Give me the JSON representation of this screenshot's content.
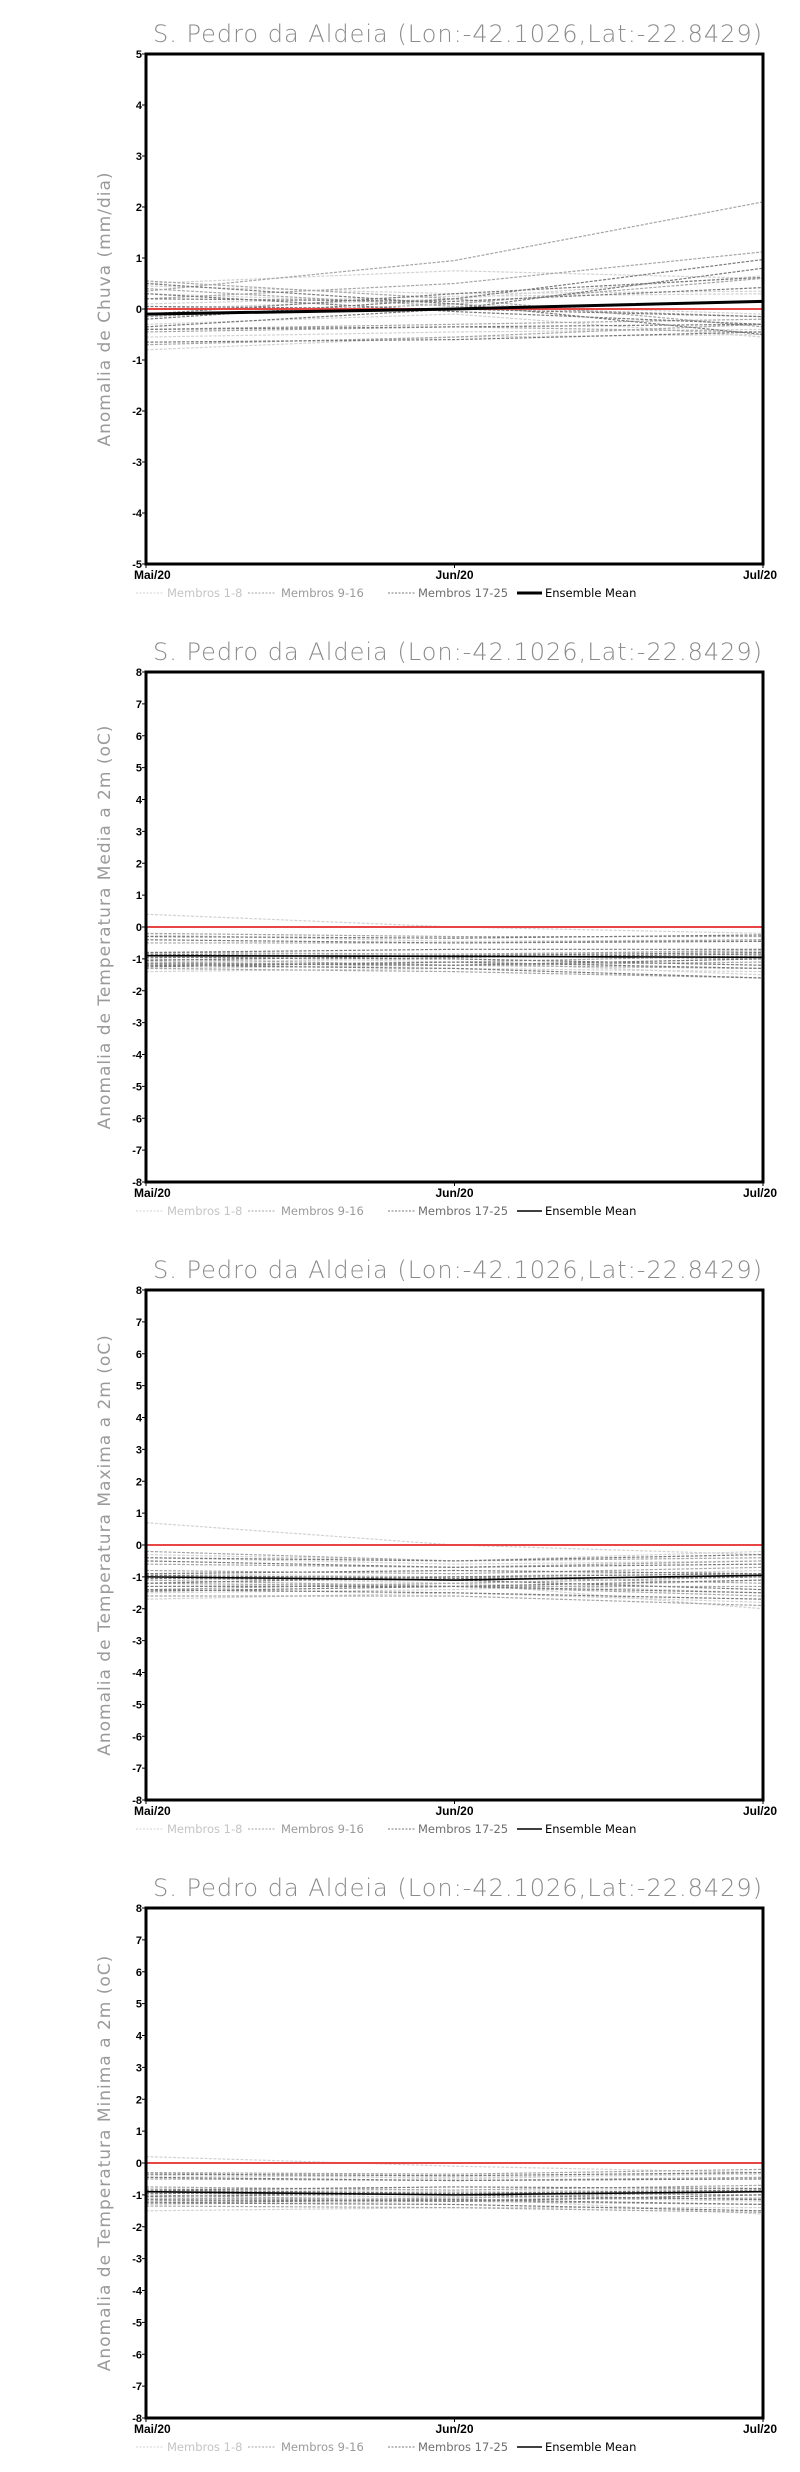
{
  "colors": {
    "members_1_8": "#d2d2d2",
    "members_9_16": "#a6a6a6",
    "members_17_25": "#7a7a7a",
    "mean": "#000000",
    "zero_line": "#e84545",
    "legend_1_8": "#c4c4c4",
    "legend_9_16": "#9a9a9a",
    "legend_17_25": "#6e6e6e"
  },
  "legend": {
    "m1": "Membros 1-8",
    "m2": "Membros 9-16",
    "m3": "Membros 17-25",
    "mean": "Ensemble Mean"
  },
  "chart_data": [
    {
      "type": "line",
      "title": "S. Pedro da Aldeia (Lon:-42.1026,Lat:-22.8429)",
      "ylabel": "Anomalia de Chuva (mm/dia)",
      "x": [
        "Mai/20",
        "Jun/20",
        "Jul/20"
      ],
      "ylim": [
        -5,
        5
      ],
      "yticks": [
        "-5",
        "-4",
        "-3",
        "-2",
        "-1",
        "0",
        "1",
        "2",
        "3",
        "4",
        "5"
      ],
      "mean_bold": true,
      "members": [
        [
          0.5,
          0.75,
          0.6
        ],
        [
          0.45,
          0.3,
          0.35
        ],
        [
          -0.8,
          -0.55,
          -0.5
        ],
        [
          0.1,
          0.25,
          0.3
        ],
        [
          -0.55,
          -0.45,
          -0.4
        ],
        [
          0.3,
          0.1,
          -0.1
        ],
        [
          -0.3,
          -0.1,
          -0.55
        ],
        [
          0.0,
          0.2,
          0.65
        ],
        [
          0.35,
          0.95,
          2.1
        ],
        [
          0.55,
          0.2,
          -0.35
        ],
        [
          -0.7,
          -0.55,
          -0.3
        ],
        [
          0.2,
          0.5,
          1.12
        ],
        [
          -0.4,
          -0.3,
          -0.2
        ],
        [
          0.4,
          0.05,
          -0.15
        ],
        [
          -0.15,
          0.1,
          0.6
        ],
        [
          -0.45,
          -0.35,
          -0.45
        ],
        [
          0.5,
          0.1,
          -0.5
        ],
        [
          -0.35,
          0.0,
          0.8
        ],
        [
          0.2,
          0.15,
          0.42
        ],
        [
          -0.65,
          -0.6,
          -0.45
        ],
        [
          0.3,
          -0.05,
          -0.3
        ],
        [
          -0.2,
          0.2,
          0.97
        ],
        [
          -0.4,
          -0.35,
          -0.3
        ],
        [
          0.05,
          0.0,
          -0.15
        ],
        [
          -0.1,
          0.3,
          0.62
        ]
      ],
      "mean": [
        -0.1,
        0.0,
        0.15
      ]
    },
    {
      "type": "line",
      "title": "S. Pedro da Aldeia (Lon:-42.1026,Lat:-22.8429)",
      "ylabel": "Anomalia de Temperatura Media a 2m (oC)",
      "x": [
        "Mai/20",
        "Jun/20",
        "Jul/20"
      ],
      "ylim": [
        -8,
        8
      ],
      "yticks": [
        "-8",
        "-7",
        "-6",
        "-5",
        "-4",
        "-3",
        "-2",
        "-1",
        "0",
        "1",
        "2",
        "3",
        "4",
        "5",
        "6",
        "7",
        "8"
      ],
      "mean_bold": false,
      "members": [
        [
          0.4,
          0.0,
          -0.2
        ],
        [
          -0.3,
          -0.35,
          -0.25
        ],
        [
          -1.4,
          -1.3,
          -1.4
        ],
        [
          -0.8,
          -0.9,
          -0.7
        ],
        [
          -1.1,
          -1.0,
          -1.2
        ],
        [
          -0.25,
          -0.45,
          -0.4
        ],
        [
          -1.3,
          -1.2,
          -1.0
        ],
        [
          -0.9,
          -1.1,
          -1.5
        ],
        [
          -0.2,
          -0.3,
          -0.3
        ],
        [
          -1.2,
          -1.1,
          -0.9
        ],
        [
          -0.8,
          -0.85,
          -0.75
        ],
        [
          -1.0,
          -1.2,
          -1.3
        ],
        [
          -0.5,
          -0.5,
          -0.4
        ],
        [
          -1.3,
          -1.4,
          -1.6
        ],
        [
          -0.9,
          -0.9,
          -1.0
        ],
        [
          -1.1,
          -1.2,
          -1.1
        ],
        [
          -0.3,
          -0.35,
          -0.25
        ],
        [
          -0.8,
          -0.7,
          -0.7
        ],
        [
          -1.2,
          -1.3,
          -1.6
        ],
        [
          -0.95,
          -1.0,
          -1.2
        ],
        [
          -1.05,
          -0.9,
          -0.8
        ],
        [
          -0.4,
          -0.5,
          -0.45
        ],
        [
          -1.25,
          -1.1,
          -1.3
        ],
        [
          -0.85,
          -0.95,
          -0.85
        ],
        [
          -1.15,
          -1.2,
          -1.0
        ]
      ],
      "mean": [
        -0.9,
        -0.92,
        -0.95
      ]
    },
    {
      "type": "line",
      "title": "S. Pedro da Aldeia (Lon:-42.1026,Lat:-22.8429)",
      "ylabel": "Anomalia de Temperatura Maxima a 2m (oC)",
      "x": [
        "Mai/20",
        "Jun/20",
        "Jul/20"
      ],
      "ylim": [
        -8,
        8
      ],
      "yticks": [
        "-8",
        "-7",
        "-6",
        "-5",
        "-4",
        "-3",
        "-2",
        "-1",
        "0",
        "1",
        "2",
        "3",
        "4",
        "5",
        "6",
        "7",
        "8"
      ],
      "mean_bold": false,
      "members": [
        [
          0.7,
          0.0,
          -0.3
        ],
        [
          -0.4,
          -0.6,
          -0.5
        ],
        [
          -1.7,
          -1.5,
          -1.8
        ],
        [
          -0.9,
          -1.0,
          -0.8
        ],
        [
          -1.3,
          -1.2,
          -1.5
        ],
        [
          -0.3,
          -0.5,
          -0.2
        ],
        [
          -1.5,
          -1.4,
          -1.1
        ],
        [
          -1.0,
          -1.2,
          -2.0
        ],
        [
          -0.2,
          -0.5,
          -0.4
        ],
        [
          -1.4,
          -1.2,
          -1.0
        ],
        [
          -0.8,
          -0.9,
          -0.7
        ],
        [
          -1.1,
          -1.3,
          -1.6
        ],
        [
          -0.6,
          -0.7,
          -0.5
        ],
        [
          -1.6,
          -1.6,
          -1.9
        ],
        [
          -1.0,
          -1.0,
          -1.2
        ],
        [
          -1.2,
          -1.3,
          -1.3
        ],
        [
          -0.4,
          -0.5,
          -0.3
        ],
        [
          -0.9,
          -0.8,
          -0.9
        ],
        [
          -1.4,
          -1.5,
          -1.7
        ],
        [
          -1.05,
          -1.1,
          -1.4
        ],
        [
          -1.2,
          -1.0,
          -0.9
        ],
        [
          -0.5,
          -0.7,
          -0.6
        ],
        [
          -1.45,
          -1.3,
          -1.5
        ],
        [
          -0.95,
          -1.05,
          -1.0
        ],
        [
          -1.3,
          -1.3,
          -1.1
        ]
      ],
      "mean": [
        -1.0,
        -1.1,
        -0.95
      ]
    },
    {
      "type": "line",
      "title": "S. Pedro da Aldeia (Lon:-42.1026,Lat:-22.8429)",
      "ylabel": "Anomalia de Temperatura Minima a 2m (oC)",
      "x": [
        "Mai/20",
        "Jun/20",
        "Jul/20"
      ],
      "ylim": [
        -8,
        8
      ],
      "yticks": [
        "-8",
        "-7",
        "-6",
        "-5",
        "-4",
        "-3",
        "-2",
        "-1",
        "0",
        "1",
        "2",
        "3",
        "4",
        "5",
        "6",
        "7",
        "8"
      ],
      "mean_bold": false,
      "members": [
        [
          0.2,
          -0.1,
          -0.3
        ],
        [
          -0.4,
          -0.45,
          -0.35
        ],
        [
          -1.5,
          -1.4,
          -1.4
        ],
        [
          -0.8,
          -0.9,
          -0.8
        ],
        [
          -1.1,
          -1.05,
          -1.2
        ],
        [
          -0.3,
          -0.5,
          -0.3
        ],
        [
          -1.3,
          -1.2,
          -1.0
        ],
        [
          -0.9,
          -1.1,
          -1.6
        ],
        [
          -0.3,
          -0.35,
          -0.2
        ],
        [
          -1.2,
          -1.1,
          -0.9
        ],
        [
          -0.75,
          -0.85,
          -0.7
        ],
        [
          -1.0,
          -1.2,
          -1.3
        ],
        [
          -0.5,
          -0.55,
          -0.45
        ],
        [
          -1.35,
          -1.4,
          -1.55
        ],
        [
          -0.9,
          -0.95,
          -1.0
        ],
        [
          -1.1,
          -1.15,
          -1.1
        ],
        [
          -0.35,
          -0.4,
          -0.3
        ],
        [
          -0.85,
          -0.75,
          -0.8
        ],
        [
          -1.25,
          -1.3,
          -1.5
        ],
        [
          -0.95,
          -1.0,
          -1.15
        ],
        [
          -1.05,
          -0.95,
          -0.85
        ],
        [
          -0.45,
          -0.55,
          -0.5
        ],
        [
          -1.25,
          -1.15,
          -1.3
        ],
        [
          -0.85,
          -0.95,
          -0.9
        ],
        [
          -1.15,
          -1.2,
          -1.0
        ]
      ],
      "mean": [
        -0.9,
        -1.0,
        -0.9
      ]
    }
  ]
}
